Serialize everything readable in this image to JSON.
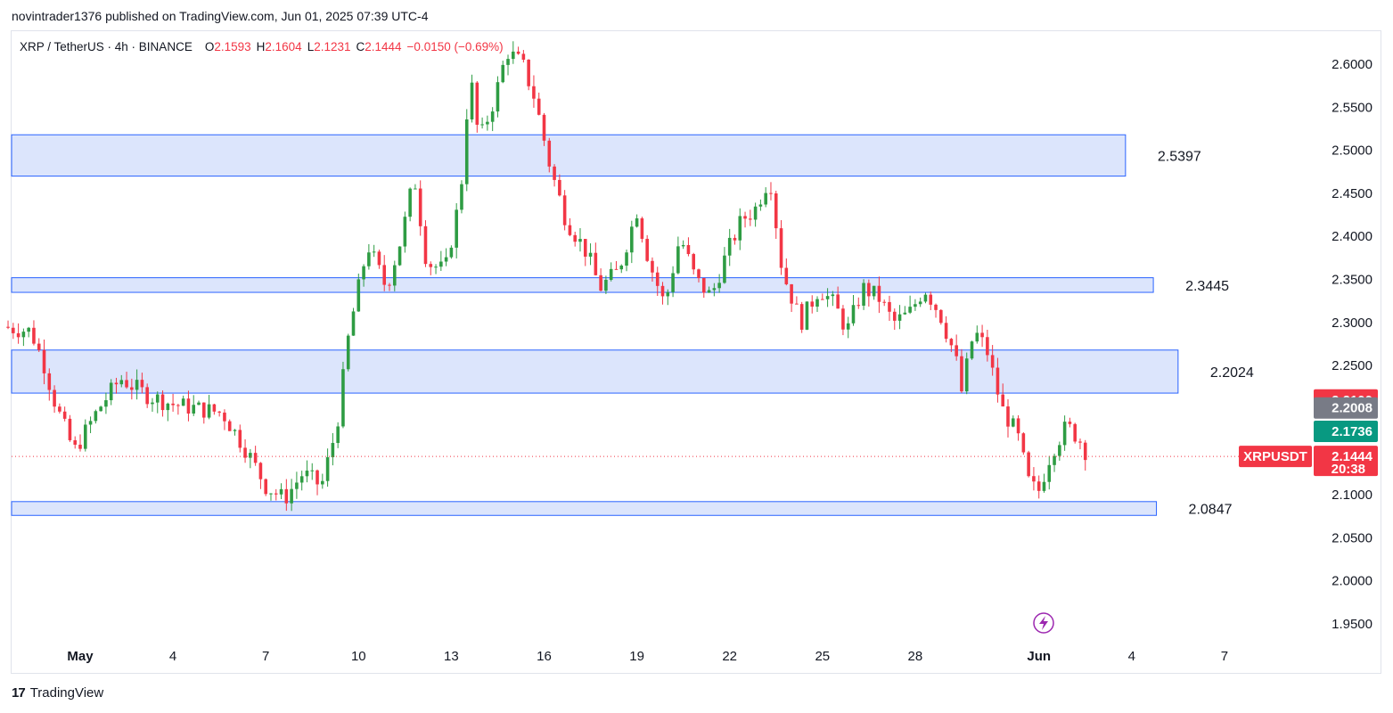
{
  "header": {
    "published_line": "novintrader1376 published on TradingView.com, Jun 01, 2025 07:39 UTC-4"
  },
  "legend": {
    "symbol": "XRP / TetherUS · 4h · BINANCE",
    "open_label": "O",
    "open_value": "2.1593",
    "high_label": "H",
    "high_value": "2.1604",
    "low_label": "L",
    "low_value": "2.1231",
    "close_label": "C",
    "close_value": "2.1444",
    "change": "−0.0150 (−0.69%)"
  },
  "footer": {
    "brand": "TradingView"
  },
  "colors": {
    "up": "#26a69a",
    "up_candle": "#2e9c43",
    "down": "#f23645",
    "zone_fill": "#d6e0fc",
    "zone_border": "#2962ff",
    "badge_red": "#f23645",
    "badge_gray": "#787b86",
    "badge_green": "#089981",
    "alert_icon": "#9c27b0"
  },
  "chart_data": {
    "type": "candlestick",
    "symbol": "XRPUSDT",
    "timeframe": "4h",
    "ylim": [
      1.93,
      2.64
    ],
    "y_ticks": [
      "2.6000",
      "2.5500",
      "2.5000",
      "2.4500",
      "2.4000",
      "2.3500",
      "2.3000",
      "2.2500",
      "2.2000",
      "2.1500",
      "2.1000",
      "2.0500",
      "2.0000",
      "1.9500"
    ],
    "x_ticks": [
      "May",
      "4",
      "7",
      "10",
      "13",
      "16",
      "19",
      "22",
      "25",
      "28",
      "Jun",
      "4",
      "7"
    ],
    "zones": [
      {
        "top": 2.518,
        "bottom": 2.47,
        "label": "2.5397",
        "end_day": 33.8
      },
      {
        "top": 2.352,
        "bottom": 2.335,
        "label": "2.3445",
        "end_day": 34.7
      },
      {
        "top": 2.268,
        "bottom": 2.218,
        "label": "2.2024",
        "end_day": 35.5
      },
      {
        "top": 2.092,
        "bottom": 2.076,
        "label": "2.0847",
        "end_day": 34.8
      }
    ],
    "price_badges": [
      {
        "value": 2.21,
        "text": "2.2100",
        "color": "red"
      },
      {
        "value": 2.2008,
        "text": "2.2008",
        "color": "gray"
      },
      {
        "value": 2.1736,
        "text": "2.1736",
        "color": "green"
      }
    ],
    "last_price": {
      "value": 2.1444,
      "text": "2.1444",
      "countdown": "20:38",
      "symbol_tag": "XRPUSDT"
    },
    "close_path": [
      [
        -2.5,
        2.295
      ],
      [
        -1.6,
        2.29
      ],
      [
        -1.2,
        2.255
      ],
      [
        -0.8,
        2.205
      ],
      [
        -0.2,
        2.15
      ],
      [
        0.6,
        2.2
      ],
      [
        1.3,
        2.235
      ],
      [
        2.2,
        2.215
      ],
      [
        3.0,
        2.205
      ],
      [
        3.8,
        2.2
      ],
      [
        4.6,
        2.195
      ],
      [
        5.4,
        2.15
      ],
      [
        6.0,
        2.11
      ],
      [
        6.6,
        2.095
      ],
      [
        7.2,
        2.125
      ],
      [
        7.8,
        2.11
      ],
      [
        8.3,
        2.18
      ],
      [
        8.7,
        2.29
      ],
      [
        9.3,
        2.39
      ],
      [
        9.9,
        2.34
      ],
      [
        10.4,
        2.4
      ],
      [
        10.8,
        2.47
      ],
      [
        11.2,
        2.37
      ],
      [
        11.8,
        2.36
      ],
      [
        12.3,
        2.45
      ],
      [
        12.6,
        2.59
      ],
      [
        12.9,
        2.51
      ],
      [
        13.4,
        2.56
      ],
      [
        13.8,
        2.615
      ],
      [
        14.3,
        2.6
      ],
      [
        14.7,
        2.56
      ],
      [
        15.2,
        2.48
      ],
      [
        15.7,
        2.42
      ],
      [
        16.4,
        2.38
      ],
      [
        16.8,
        2.34
      ],
      [
        17.4,
        2.36
      ],
      [
        18.0,
        2.43
      ],
      [
        18.4,
        2.37
      ],
      [
        18.9,
        2.32
      ],
      [
        19.4,
        2.4
      ],
      [
        19.9,
        2.35
      ],
      [
        20.4,
        2.33
      ],
      [
        20.9,
        2.38
      ],
      [
        21.4,
        2.42
      ],
      [
        21.8,
        2.43
      ],
      [
        22.3,
        2.47
      ],
      [
        22.7,
        2.36
      ],
      [
        23.3,
        2.3
      ],
      [
        23.9,
        2.34
      ],
      [
        24.4,
        2.32
      ],
      [
        24.8,
        2.29
      ],
      [
        25.3,
        2.34
      ],
      [
        25.8,
        2.33
      ],
      [
        26.3,
        2.3
      ],
      [
        26.8,
        2.31
      ],
      [
        27.3,
        2.34
      ],
      [
        27.8,
        2.31
      ],
      [
        28.3,
        2.26
      ],
      [
        28.5,
        2.22
      ],
      [
        28.9,
        2.29
      ],
      [
        29.3,
        2.27
      ],
      [
        29.8,
        2.2
      ],
      [
        30.3,
        2.17
      ],
      [
        30.7,
        2.11
      ],
      [
        31.0,
        2.105
      ],
      [
        31.4,
        2.15
      ],
      [
        31.9,
        2.18
      ],
      [
        32.3,
        2.165
      ],
      [
        32.6,
        2.1444
      ]
    ]
  }
}
